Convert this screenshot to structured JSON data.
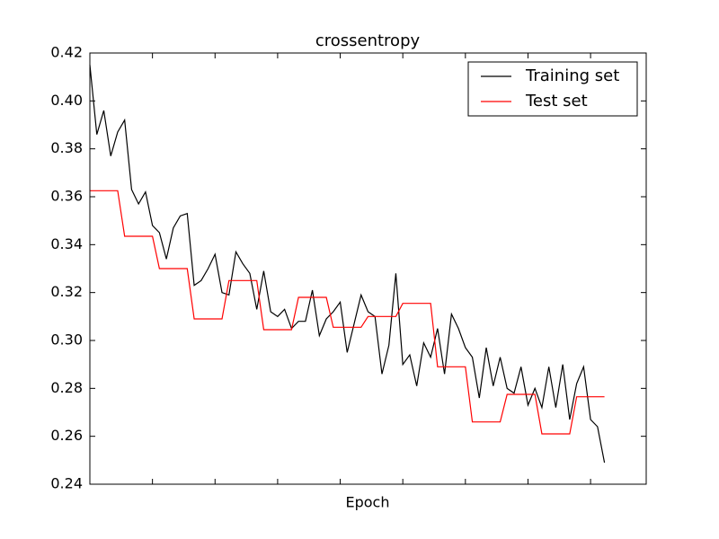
{
  "chart_data": {
    "type": "line",
    "title": "crossentropy",
    "x_label": "Epoch",
    "x": [
      0,
      1,
      2,
      3,
      4,
      5,
      6,
      7,
      8,
      9,
      10,
      11,
      12,
      13,
      14,
      15,
      16,
      17,
      18,
      19,
      20,
      21,
      22,
      23,
      24,
      25,
      26,
      27,
      28,
      29,
      30,
      31,
      32,
      33,
      34,
      35,
      36,
      37,
      38,
      39,
      40,
      41,
      42,
      43,
      44,
      45,
      46,
      47,
      48,
      49,
      50,
      51,
      52,
      53,
      54,
      55,
      56,
      57,
      58,
      59,
      60,
      61,
      62,
      63,
      64,
      65,
      66,
      67,
      68,
      69,
      70,
      71,
      72,
      73,
      74
    ],
    "xlim": [
      0,
      80
    ],
    "xticks": [
      9,
      18,
      27,
      36,
      45,
      54,
      63,
      72
    ],
    "ylim": [
      0.24,
      0.42
    ],
    "yticks": [
      0.24,
      0.26,
      0.28,
      {
        "value": 0.3,
        "label": "0.30"
      },
      0.32,
      0.34,
      0.36,
      0.38,
      {
        "value": 0.4,
        "label": "0.40"
      },
      0.42
    ],
    "legend_position": "upper right",
    "series": [
      {
        "name": "Training set",
        "color": "#000000",
        "values": [
          0.415,
          0.386,
          0.396,
          0.377,
          0.387,
          0.392,
          0.363,
          0.357,
          0.362,
          0.348,
          0.345,
          0.334,
          0.347,
          0.352,
          0.353,
          0.323,
          0.325,
          0.33,
          0.336,
          0.32,
          0.319,
          0.337,
          0.332,
          0.328,
          0.313,
          0.329,
          0.312,
          0.31,
          0.313,
          0.305,
          0.308,
          0.308,
          0.321,
          0.302,
          0.309,
          0.312,
          0.316,
          0.295,
          0.307,
          0.319,
          0.312,
          0.31,
          0.286,
          0.298,
          0.328,
          0.29,
          0.294,
          0.281,
          0.299,
          0.293,
          0.305,
          0.286,
          0.311,
          0.305,
          0.297,
          0.293,
          0.276,
          0.297,
          0.281,
          0.293,
          0.28,
          0.278,
          0.289,
          0.273,
          0.28,
          0.272,
          0.289,
          0.272,
          0.29,
          0.267,
          0.282,
          0.289,
          0.267,
          0.264,
          0.249
        ]
      },
      {
        "name": "Test set",
        "color": "#ff0000",
        "values": [
          0.3625,
          0.3625,
          0.3625,
          0.3625,
          0.3625,
          0.3435,
          0.3435,
          0.3435,
          0.3435,
          0.3435,
          0.33,
          0.33,
          0.33,
          0.33,
          0.33,
          0.309,
          0.309,
          0.309,
          0.309,
          0.309,
          0.325,
          0.325,
          0.325,
          0.325,
          0.325,
          0.3045,
          0.3045,
          0.3045,
          0.3045,
          0.3045,
          0.318,
          0.318,
          0.318,
          0.318,
          0.318,
          0.3055,
          0.3055,
          0.3055,
          0.3055,
          0.3055,
          0.31,
          0.31,
          0.31,
          0.31,
          0.31,
          0.3155,
          0.3155,
          0.3155,
          0.3155,
          0.3155,
          0.289,
          0.289,
          0.289,
          0.289,
          0.289,
          0.266,
          0.266,
          0.266,
          0.266,
          0.266,
          0.2775,
          0.2775,
          0.2775,
          0.2775,
          0.2775,
          0.261,
          0.261,
          0.261,
          0.261,
          0.261,
          0.2765,
          0.2765,
          0.2765,
          0.2765,
          0.2765
        ]
      }
    ]
  }
}
